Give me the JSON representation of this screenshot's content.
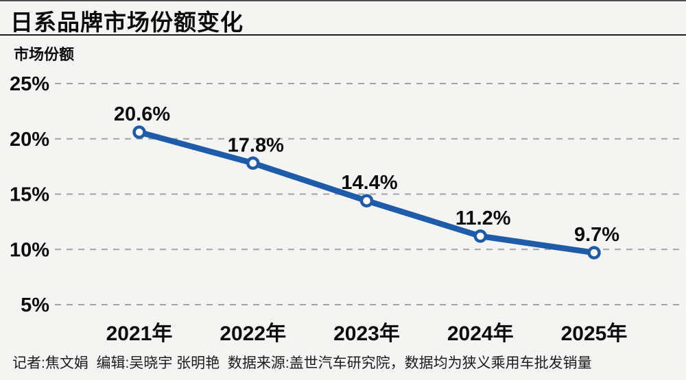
{
  "header": {
    "title": "日系品牌市场份额变化"
  },
  "chart_data": {
    "type": "line",
    "title": "日系品牌市场份额变化",
    "ylabel": "市场份额",
    "xlabel": "",
    "categories": [
      "2021年",
      "2022年",
      "2023年",
      "2024年",
      "2025年"
    ],
    "values": [
      20.6,
      17.8,
      14.4,
      11.2,
      9.7
    ],
    "data_labels": [
      "20.6%",
      "17.8%",
      "14.4%",
      "11.2%",
      "9.7%"
    ],
    "y_ticks": [
      "25%",
      "20%",
      "15%",
      "10%",
      "5%"
    ],
    "y_tick_values": [
      25,
      20,
      15,
      10,
      5
    ],
    "ylim": [
      5,
      25
    ],
    "grid": "horizontal-dashed",
    "legend": "none",
    "colors": {
      "line": "#1e5ba8",
      "marker_fill": "#ffffff",
      "grid": "#a3a3a3",
      "text": "#0c0c0c",
      "background": "#f4f4f3"
    }
  },
  "footer": {
    "credits": "记者:焦文娟  编辑:吴晓宇 张明艳  数据来源:盖世汽车研究院，数据均为狭义乘用车批发销量"
  }
}
